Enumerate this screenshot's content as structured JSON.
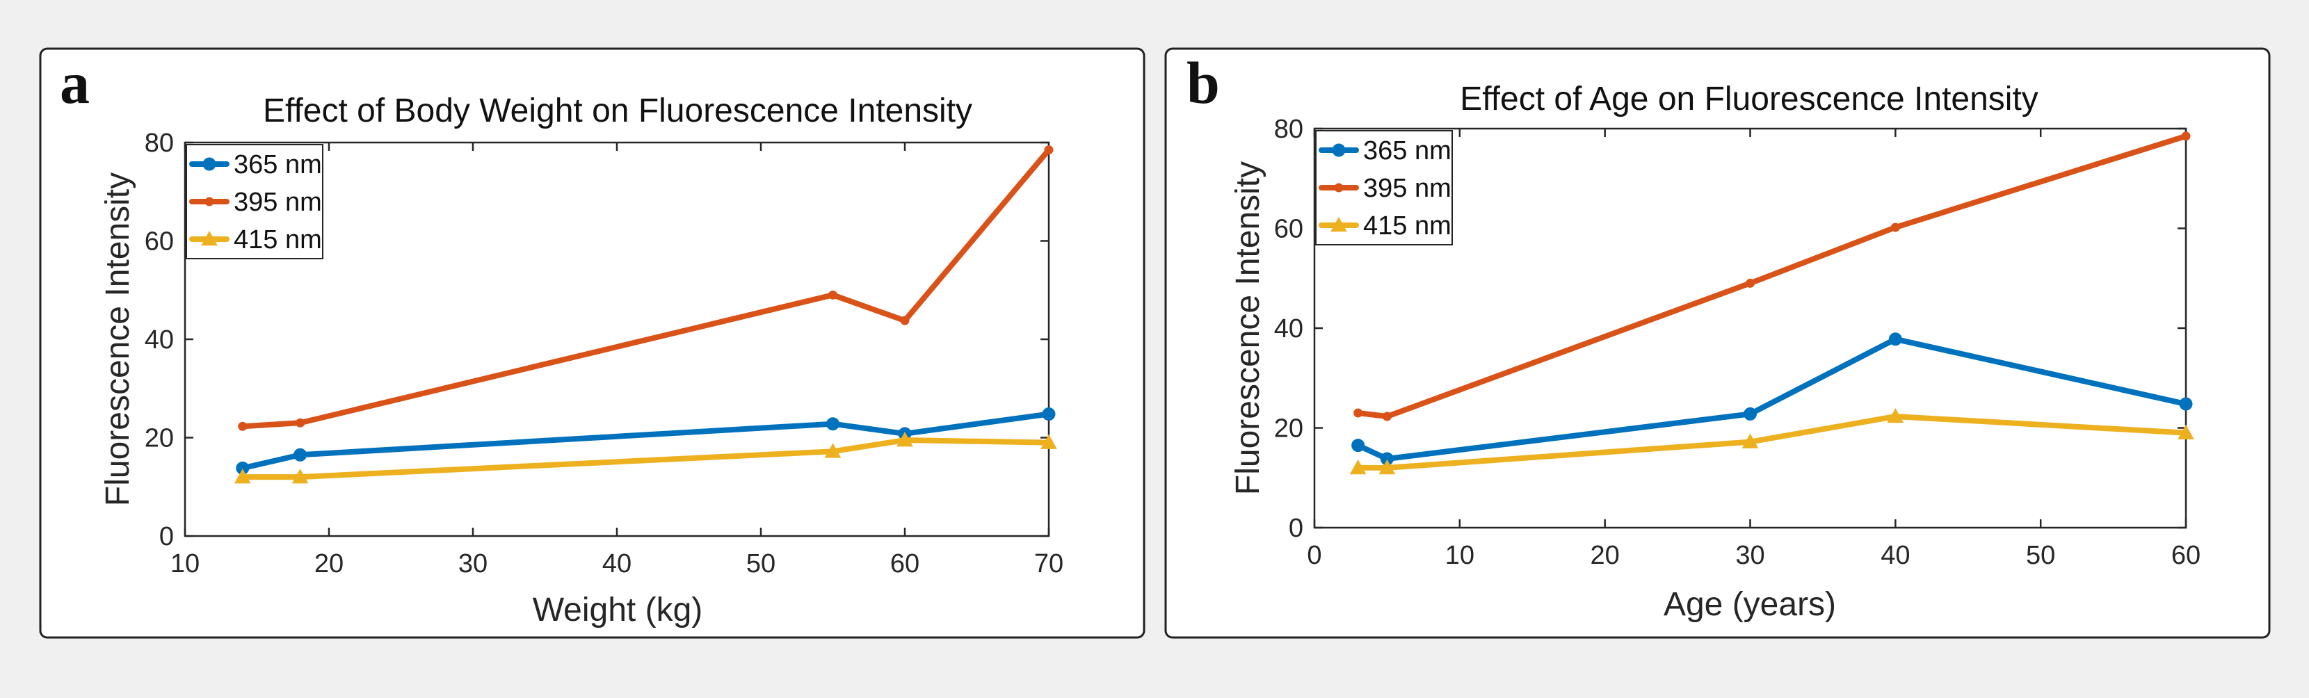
{
  "chart_data": [
    {
      "panel": "a",
      "type": "line",
      "title": "Effect of Body Weight on Fluorescence Intensity",
      "xlabel": "Weight (kg)",
      "ylabel": "Fluorescence Intensity",
      "xlim": [
        10,
        70
      ],
      "ylim": [
        0,
        80
      ],
      "xticks": [
        10,
        20,
        30,
        40,
        50,
        60,
        70
      ],
      "yticks": [
        0,
        20,
        40,
        60,
        80
      ],
      "legend_location": "top-left",
      "x": [
        14,
        18,
        55,
        60,
        70
      ],
      "series": [
        {
          "name": "365 nm",
          "color": "#0072bd",
          "marker": "circle",
          "values": [
            13.8,
            16.5,
            22.8,
            20.8,
            24.8
          ]
        },
        {
          "name": "395 nm",
          "color": "#d95319",
          "marker": "dot",
          "values": [
            22.3,
            23.0,
            49.0,
            43.8,
            78.5
          ]
        },
        {
          "name": "415 nm",
          "color": "#edb120",
          "marker": "triangle",
          "values": [
            12.0,
            12.0,
            17.2,
            19.5,
            19.0
          ]
        }
      ]
    },
    {
      "panel": "b",
      "type": "line",
      "title": "Effect of Age on Fluorescence Intensity",
      "xlabel": "Age (years)",
      "ylabel": "Fluorescence Intensity",
      "xlim": [
        0,
        60
      ],
      "ylim": [
        0,
        80
      ],
      "xticks": [
        0,
        10,
        20,
        30,
        40,
        50,
        60
      ],
      "yticks": [
        0,
        20,
        40,
        60,
        80
      ],
      "legend_location": "top-left",
      "x": [
        3,
        5,
        30,
        40,
        60
      ],
      "series": [
        {
          "name": "365 nm",
          "color": "#0072bd",
          "marker": "circle",
          "values": [
            16.5,
            13.8,
            22.8,
            37.8,
            24.8
          ]
        },
        {
          "name": "395 nm",
          "color": "#d95319",
          "marker": "dot",
          "values": [
            23.0,
            22.3,
            49.0,
            60.2,
            78.5
          ]
        },
        {
          "name": "415 nm",
          "color": "#edb120",
          "marker": "triangle",
          "values": [
            12.0,
            12.0,
            17.2,
            22.3,
            19.0
          ]
        }
      ]
    }
  ]
}
